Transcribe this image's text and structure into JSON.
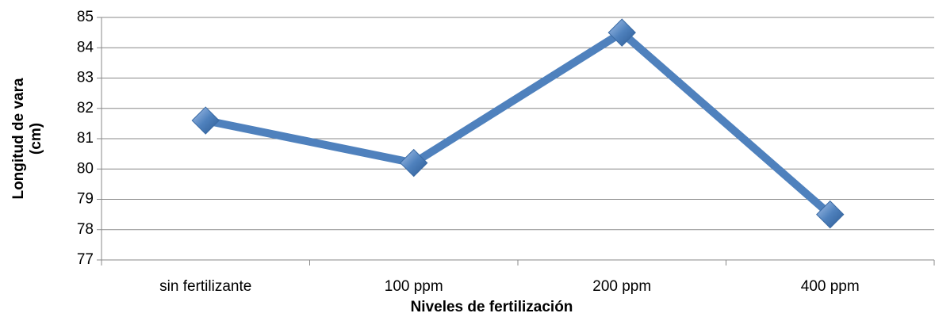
{
  "chart_data": {
    "type": "line",
    "categories": [
      "sin fertilizante",
      "100 ppm",
      "200 ppm",
      "400 ppm"
    ],
    "series": [
      {
        "name": "Longitud de vara",
        "color": "#4f81bd",
        "values": [
          81.6,
          80.2,
          84.5,
          78.5
        ]
      }
    ],
    "xlabel": "Niveles de fertilización",
    "ylabel": [
      "Longitud de vara",
      "(cm)"
    ],
    "ylim": [
      77,
      85
    ],
    "yticks": [
      77,
      78,
      79,
      80,
      81,
      82,
      83,
      84,
      85
    ],
    "grid": true
  }
}
